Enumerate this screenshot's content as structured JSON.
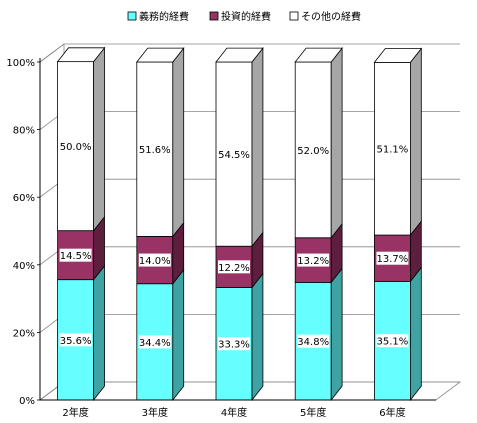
{
  "chart_data": {
    "type": "bar",
    "stacked": true,
    "normalized": true,
    "categories": [
      "2年度",
      "3年度",
      "4年度",
      "5年度",
      "6年度"
    ],
    "series": [
      {
        "name": "義務的経費",
        "values": [
          35.6,
          34.4,
          33.3,
          34.8,
          35.1
        ],
        "color": "#66FFFF",
        "side_color": "#3FA3A3"
      },
      {
        "name": "投資的経費",
        "values": [
          14.5,
          14.0,
          12.2,
          13.2,
          13.7
        ],
        "color": "#993366",
        "side_color": "#5E1F3E"
      },
      {
        "name": "その他の経費",
        "values": [
          50.0,
          51.6,
          54.5,
          52.0,
          51.1
        ],
        "color": "#FFFFFF",
        "side_color": "#A6A6A6"
      }
    ],
    "value_labels": [
      [
        "35.6%",
        "34.4%",
        "33.3%",
        "34.8%",
        "35.1%"
      ],
      [
        "14.5%",
        "14.0%",
        "12.2%",
        "13.2%",
        "13.7%"
      ],
      [
        "50.0%",
        "51.6%",
        "54.5%",
        "52.0%",
        "51.1%"
      ]
    ],
    "yticks": [
      "0%",
      "20%",
      "40%",
      "60%",
      "80%",
      "100%"
    ],
    "ylim": [
      0,
      100
    ],
    "grid": true,
    "legend_position": "top",
    "three_d": true
  }
}
